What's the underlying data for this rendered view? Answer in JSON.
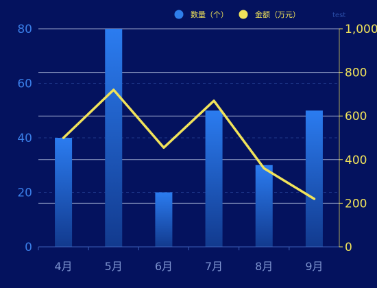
{
  "background_color": "#04125e",
  "chart_data": {
    "type": "bar",
    "categories": [
      "4月",
      "5月",
      "6月",
      "7月",
      "8月",
      "9月"
    ],
    "series": [
      {
        "name": "数量（个）",
        "type": "bar",
        "axis": "left",
        "values": [
          40,
          80,
          20,
          50,
          30,
          50
        ],
        "color_top": "#2b7cf0",
        "color_bottom": "#123a8e",
        "legend_color": "#2f7fea"
      },
      {
        "name": "金额（万元）",
        "type": "line",
        "axis": "right",
        "values": [
          500,
          720,
          455,
          670,
          360,
          220
        ],
        "color": "#f1e35a",
        "legend_color": "#f1e35a"
      }
    ],
    "y_left": {
      "min": 0,
      "max": 80,
      "ticks": [
        0,
        20,
        40,
        60,
        80
      ],
      "tick_labels": [
        "0",
        "20",
        "40",
        "60",
        "80"
      ],
      "color": "#3a7ee8"
    },
    "y_right": {
      "min": 0,
      "max": 1000,
      "ticks": [
        0,
        200,
        400,
        600,
        800,
        1000
      ],
      "tick_labels": [
        "0",
        "200",
        "400",
        "600",
        "800",
        "1,000"
      ],
      "color": "#f1e35a"
    },
    "x_label_color": "#7d93cf",
    "grid": true,
    "legend_position": "top-right",
    "legend_extra_text": "test",
    "legend_text_color": "#f1e35a"
  }
}
